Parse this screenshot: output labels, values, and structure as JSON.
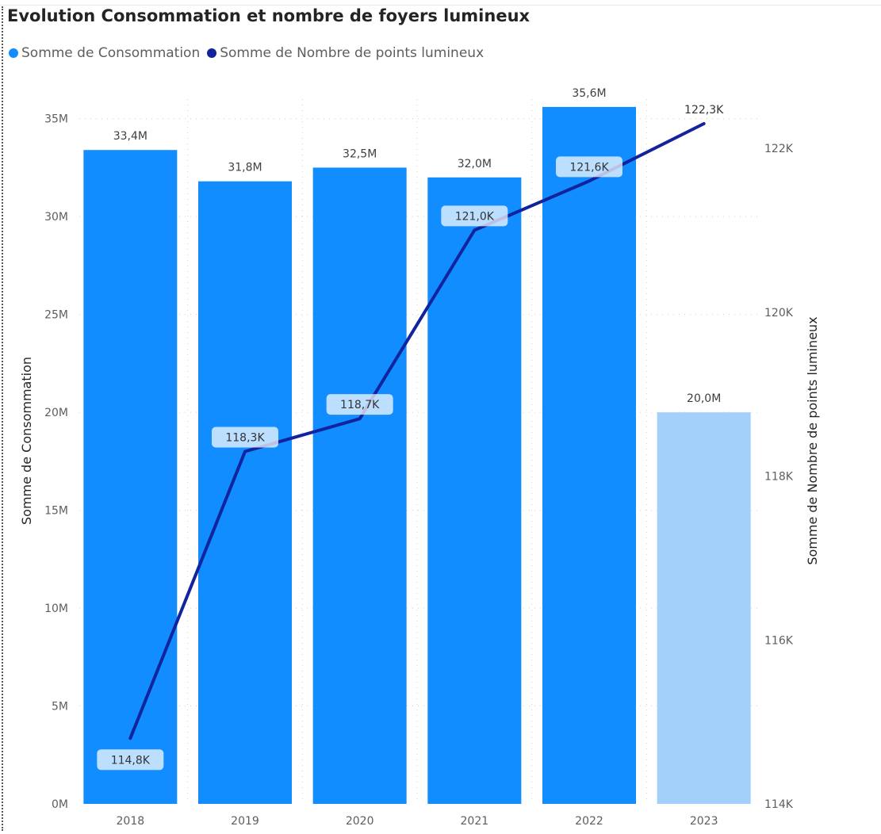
{
  "chart_data": {
    "type": "bar",
    "title": "Evolution Consommation et nombre de foyers lumineux",
    "categories": [
      "2018",
      "2019",
      "2020",
      "2021",
      "2022",
      "2023"
    ],
    "series": [
      {
        "name": "Somme de Consommation",
        "type": "bar",
        "axis": "left",
        "values": [
          33400000,
          31800000,
          32500000,
          32000000,
          35600000,
          20000000
        ],
        "labels": [
          "33,4M",
          "31,8M",
          "32,5M",
          "32,0M",
          "35,6M",
          "20,0M"
        ],
        "color": "#118DFF",
        "muted_color": "#A3CFFB"
      },
      {
        "name": "Somme de Nombre de points lumineux",
        "type": "line",
        "axis": "right",
        "values": [
          114800,
          118300,
          118700,
          121000,
          121600,
          122300
        ],
        "labels": [
          "114,8K",
          "118,3K",
          "118,7K",
          "121,0K",
          "121,6K",
          "122,3K"
        ],
        "color": "#12239E"
      }
    ],
    "ylabel": "Somme de Consommation",
    "ylim": [
      0,
      36000000
    ],
    "y_ticks": [
      0,
      5000000,
      10000000,
      15000000,
      20000000,
      25000000,
      30000000,
      35000000
    ],
    "y_tick_labels": [
      "0M",
      "5M",
      "10M",
      "15M",
      "20M",
      "25M",
      "30M",
      "35M"
    ],
    "y2label": "Somme de Nombre de points lumineux",
    "y2lim": [
      114000,
      122600
    ],
    "y2_ticks": [
      114000,
      116000,
      118000,
      120000,
      122000
    ],
    "y2_tick_labels": [
      "114K",
      "116K",
      "118K",
      "120K",
      "122K"
    ],
    "grid": true,
    "legend_position": "top-left"
  }
}
